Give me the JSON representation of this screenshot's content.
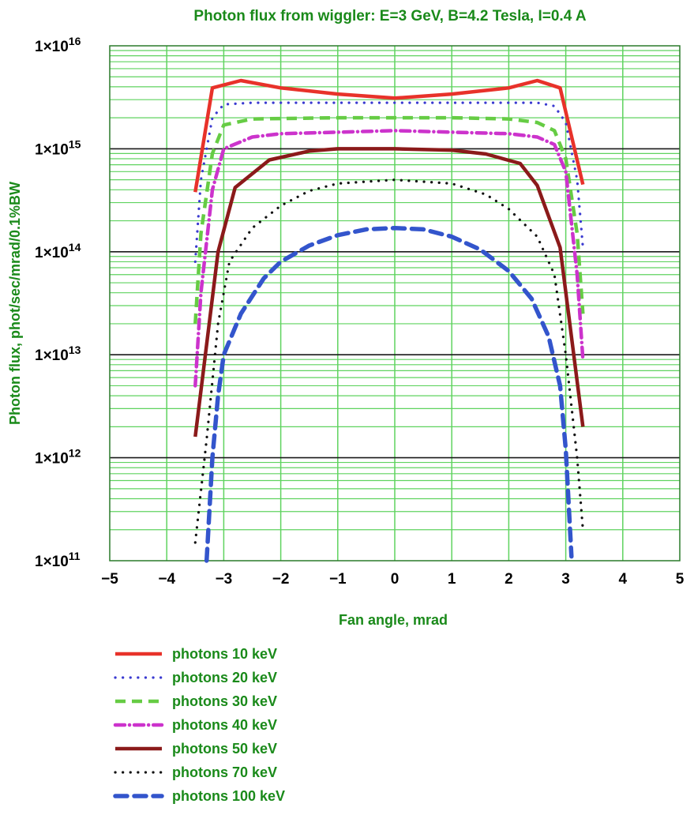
{
  "chart_data": {
    "type": "line",
    "title": "Photon flux from wiggler: E=3 GeV, B=4.2 Tesla, I=0.4 A",
    "xlabel": "Fan angle, mrad",
    "ylabel": "Photon flux, phot/sec/mrad/0.1%BW",
    "xlim": [
      -5,
      5
    ],
    "ylim": [
      100000000000.0,
      1e+16
    ],
    "y_scale": "log",
    "grid": true,
    "x_ticks": [
      "−5",
      "−4",
      "−3",
      "−2",
      "−1",
      "0",
      "1",
      "2",
      "3",
      "4",
      "5"
    ],
    "y_ticks": [
      {
        "base": "1×10",
        "exp": "11"
      },
      {
        "base": "1×10",
        "exp": "12"
      },
      {
        "base": "1×10",
        "exp": "13"
      },
      {
        "base": "1×10",
        "exp": "14"
      },
      {
        "base": "1×10",
        "exp": "15"
      },
      {
        "base": "1×10",
        "exp": "16"
      }
    ],
    "legend_position": "bottom-left",
    "series": [
      {
        "name": "photons 10 keV",
        "color": "#e8322a",
        "style": "solid",
        "x": [
          -3.5,
          -3.2,
          -2.7,
          -2,
          -1,
          0,
          1,
          2,
          2.5,
          2.9,
          3.3
        ],
        "y": [
          380000000000000.0,
          3900000000000000.0,
          4600000000000000.0,
          3900000000000000.0,
          3400000000000000.0,
          3100000000000000.0,
          3400000000000000.0,
          3900000000000000.0,
          4600000000000000.0,
          3900000000000000.0,
          450000000000000.0
        ]
      },
      {
        "name": "photons 20 keV",
        "color": "#3a3ad0",
        "style": "dotted",
        "x": [
          -3.5,
          -3.4,
          -3.2,
          -3.0,
          -2.5,
          -1,
          0,
          1,
          2,
          2.5,
          2.8,
          3.0,
          3.2,
          3.3
        ],
        "y": [
          80000000000000.0,
          500000000000000.0,
          2000000000000000.0,
          2700000000000000.0,
          2800000000000000.0,
          2800000000000000.0,
          2800000000000000.0,
          2800000000000000.0,
          2800000000000000.0,
          2800000000000000.0,
          2600000000000000.0,
          1800000000000000.0,
          500000000000000.0,
          110000000000000.0
        ]
      },
      {
        "name": "photons 30 keV",
        "color": "#66cc44",
        "style": "dashed",
        "x": [
          -3.5,
          -3.4,
          -3.2,
          -3.0,
          -2.5,
          -1,
          0,
          1,
          2,
          2.5,
          2.8,
          3.0,
          3.2,
          3.3
        ],
        "y": [
          20000000000000.0,
          150000000000000.0,
          900000000000000.0,
          1700000000000000.0,
          1950000000000000.0,
          2000000000000000.0,
          2000000000000000.0,
          2000000000000000.0,
          1950000000000000.0,
          1800000000000000.0,
          1500000000000000.0,
          800000000000000.0,
          150000000000000.0,
          25000000000000.0
        ]
      },
      {
        "name": "photons 40 keV",
        "color": "#cc33cc",
        "style": "dashdot",
        "x": [
          -3.5,
          -3.4,
          -3.2,
          -3.0,
          -2.5,
          -2,
          -1,
          0,
          1,
          2,
          2.5,
          2.8,
          3.0,
          3.2,
          3.3
        ],
        "y": [
          5000000000000.0,
          40000000000000.0,
          400000000000000.0,
          1000000000000000.0,
          1300000000000000.0,
          1400000000000000.0,
          1450000000000000.0,
          1500000000000000.0,
          1450000000000000.0,
          1400000000000000.0,
          1300000000000000.0,
          1100000000000000.0,
          600000000000000.0,
          60000000000000.0,
          9000000000000.0
        ]
      },
      {
        "name": "photons 50 keV",
        "color": "#8b1a1a",
        "style": "solid",
        "x": [
          -3.5,
          -3.1,
          -2.8,
          -2.2,
          -1.5,
          -1,
          0,
          1,
          1.6,
          2.2,
          2.5,
          2.9,
          3.3
        ],
        "y": [
          1600000000000.0,
          100000000000000.0,
          420000000000000.0,
          780000000000000.0,
          950000000000000.0,
          1000000000000000.0,
          1000000000000000.0,
          970000000000000.0,
          890000000000000.0,
          720000000000000.0,
          440000000000000.0,
          110000000000000.0,
          2000000000000.0
        ]
      },
      {
        "name": "photons 70 keV",
        "color": "#111111",
        "style": "dotted",
        "x": [
          -3.5,
          -3.3,
          -3.1,
          -2.9,
          -2.5,
          -2.0,
          -1.5,
          -1,
          0,
          1,
          1.6,
          2,
          2.5,
          2.8,
          3.0,
          3.2,
          3.3
        ],
        "y": [
          150000000000.0,
          1500000000000.0,
          20000000000000.0,
          80000000000000.0,
          170000000000000.0,
          280000000000000.0,
          390000000000000.0,
          460000000000000.0,
          500000000000000.0,
          460000000000000.0,
          360000000000000.0,
          260000000000000.0,
          140000000000000.0,
          60000000000000.0,
          10000000000000.0,
          1000000000000.0,
          200000000000.0
        ]
      },
      {
        "name": "photons 100 keV",
        "color": "#3355cc",
        "style": "bigdash",
        "x": [
          -3.3,
          -3.2,
          -3.1,
          -3.0,
          -2.7,
          -2.3,
          -2,
          -1.5,
          -1,
          -0.5,
          0,
          0.5,
          1,
          1.5,
          2,
          2.4,
          2.7,
          2.9,
          3.0,
          3.1
        ],
        "y": [
          100000000000.0,
          1000000000000.0,
          4000000000000.0,
          10000000000000.0,
          25000000000000.0,
          55000000000000.0,
          80000000000000.0,
          115000000000000.0,
          145000000000000.0,
          165000000000000.0,
          170000000000000.0,
          165000000000000.0,
          140000000000000.0,
          105000000000000.0,
          65000000000000.0,
          35000000000000.0,
          15000000000000.0,
          5000000000000.0,
          1200000000000.0,
          110000000000.0
        ]
      }
    ]
  }
}
